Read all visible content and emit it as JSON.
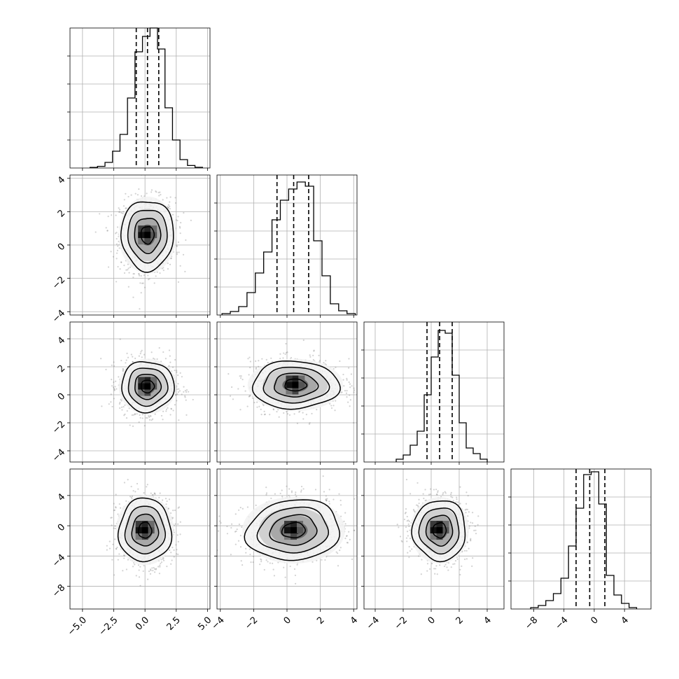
{
  "chart_data": {
    "type": "corner",
    "grid": true,
    "dims": [
      {
        "range": [
          -6,
          5.2
        ],
        "ticks": [
          -5.0,
          -2.5,
          0.0,
          2.5,
          5.0
        ],
        "tick_labels": [
          "−5.0",
          "−2.5",
          "0.0",
          "2.5",
          "5.0"
        ],
        "quantiles": [
          -0.7,
          0.2,
          1.1
        ],
        "hist_bins": [
          -4.4,
          -3.8,
          -3.2,
          -2.6,
          -2.0,
          -1.4,
          -0.8,
          -0.2,
          0.4,
          1.0,
          1.6,
          2.2,
          2.8,
          3.4,
          4.0,
          4.6
        ],
        "hist_counts": [
          0.004,
          0.012,
          0.04,
          0.12,
          0.24,
          0.5,
          0.83,
          0.94,
          1.0,
          0.85,
          0.43,
          0.2,
          0.06,
          0.018,
          0.005
        ],
        "hist_ticks": [
          0.2,
          0.4,
          0.6,
          0.8
        ],
        "hist_ylim": [
          0,
          1.0
        ],
        "center": 0.2,
        "sigma": 1.1
      },
      {
        "range": [
          -4.2,
          4.2
        ],
        "ticks": [
          -4,
          -2,
          0,
          2,
          4
        ],
        "tick_labels": [
          "−4",
          "−2",
          "0",
          "2",
          "4"
        ],
        "quantiles": [
          -0.6,
          0.4,
          1.3
        ],
        "hist_bins": [
          -3.9,
          -3.4,
          -2.9,
          -2.4,
          -1.9,
          -1.4,
          -0.9,
          -0.4,
          0.1,
          0.6,
          1.1,
          1.6,
          2.1,
          2.6,
          3.1,
          3.6,
          4.1
        ],
        "hist_counts": [
          0.01,
          0.025,
          0.06,
          0.16,
          0.3,
          0.45,
          0.68,
          0.82,
          0.9,
          0.95,
          0.92,
          0.53,
          0.28,
          0.08,
          0.03,
          0.01
        ],
        "hist_ticks": [
          0.2,
          0.4,
          0.6,
          0.8
        ],
        "hist_ylim": [
          0,
          1.0
        ],
        "center": 0.4,
        "sigma": 1.0
      },
      {
        "range": [
          -4.8,
          5.2
        ],
        "ticks": [
          -4,
          -2,
          0,
          2,
          4
        ],
        "tick_labels": [
          "−4",
          "−2",
          "0",
          "2",
          "4"
        ],
        "quantiles": [
          -0.3,
          0.6,
          1.5
        ],
        "hist_bins": [
          -2.5,
          -2.0,
          -1.5,
          -1.0,
          -0.5,
          0.0,
          0.5,
          1.0,
          1.5,
          2.0,
          2.5,
          3.0,
          3.5,
          4.0
        ],
        "hist_counts": [
          0.02,
          0.05,
          0.12,
          0.22,
          0.48,
          0.75,
          0.94,
          0.92,
          0.62,
          0.28,
          0.1,
          0.06,
          0.02
        ],
        "hist_ticks": [
          0.2,
          0.4,
          0.6,
          0.8
        ],
        "hist_ylim": [
          0,
          1.0
        ],
        "center": 0.6,
        "sigma": 0.9
      },
      {
        "range": [
          -11,
          7.5
        ],
        "ticks": [
          -8,
          -4,
          0,
          4
        ],
        "tick_labels": [
          "−8",
          "−4",
          "0",
          "4"
        ],
        "quantiles": [
          -2.4,
          -0.6,
          1.4
        ],
        "hist_bins": [
          -8.4,
          -7.4,
          -6.4,
          -5.4,
          -4.4,
          -3.4,
          -2.4,
          -1.4,
          -0.4,
          0.6,
          1.6,
          2.6,
          3.6,
          4.6,
          5.6
        ],
        "hist_counts": [
          0.01,
          0.025,
          0.06,
          0.11,
          0.22,
          0.45,
          0.72,
          0.96,
          0.98,
          0.75,
          0.24,
          0.1,
          0.04,
          0.01
        ],
        "hist_ticks": [
          0.2,
          0.4,
          0.6,
          0.8
        ],
        "hist_ylim": [
          0,
          1.0
        ],
        "center": -0.6,
        "sigma": 2.2
      }
    ],
    "pairs": [
      {
        "row": 1,
        "col": 0,
        "cx": 0.2,
        "cy": 0.6,
        "sx": 1.05,
        "sy": 1.05,
        "rho": 0.0
      },
      {
        "row": 2,
        "col": 0,
        "cx": 0.2,
        "cy": 0.6,
        "sx": 1.05,
        "sy": 0.9,
        "rho": 0.0
      },
      {
        "row": 2,
        "col": 1,
        "cx": 0.5,
        "cy": 0.7,
        "sx": 1.3,
        "sy": 0.85,
        "rho": 0.0
      },
      {
        "row": 3,
        "col": 0,
        "cx": 0.0,
        "cy": -0.6,
        "sx": 1.05,
        "sy": 2.1,
        "rho": 0.0
      },
      {
        "row": 3,
        "col": 1,
        "cx": 0.4,
        "cy": -0.6,
        "sx": 1.4,
        "sy": 2.0,
        "rho": 0.1
      },
      {
        "row": 3,
        "col": 2,
        "cx": 0.6,
        "cy": -0.6,
        "sx": 0.95,
        "sy": 2.0,
        "rho": 0.0
      }
    ],
    "contour_levels_sigma": [
      0.5,
      1.0,
      1.5,
      2.0
    ],
    "scatter_points_per_panel": 1100
  }
}
